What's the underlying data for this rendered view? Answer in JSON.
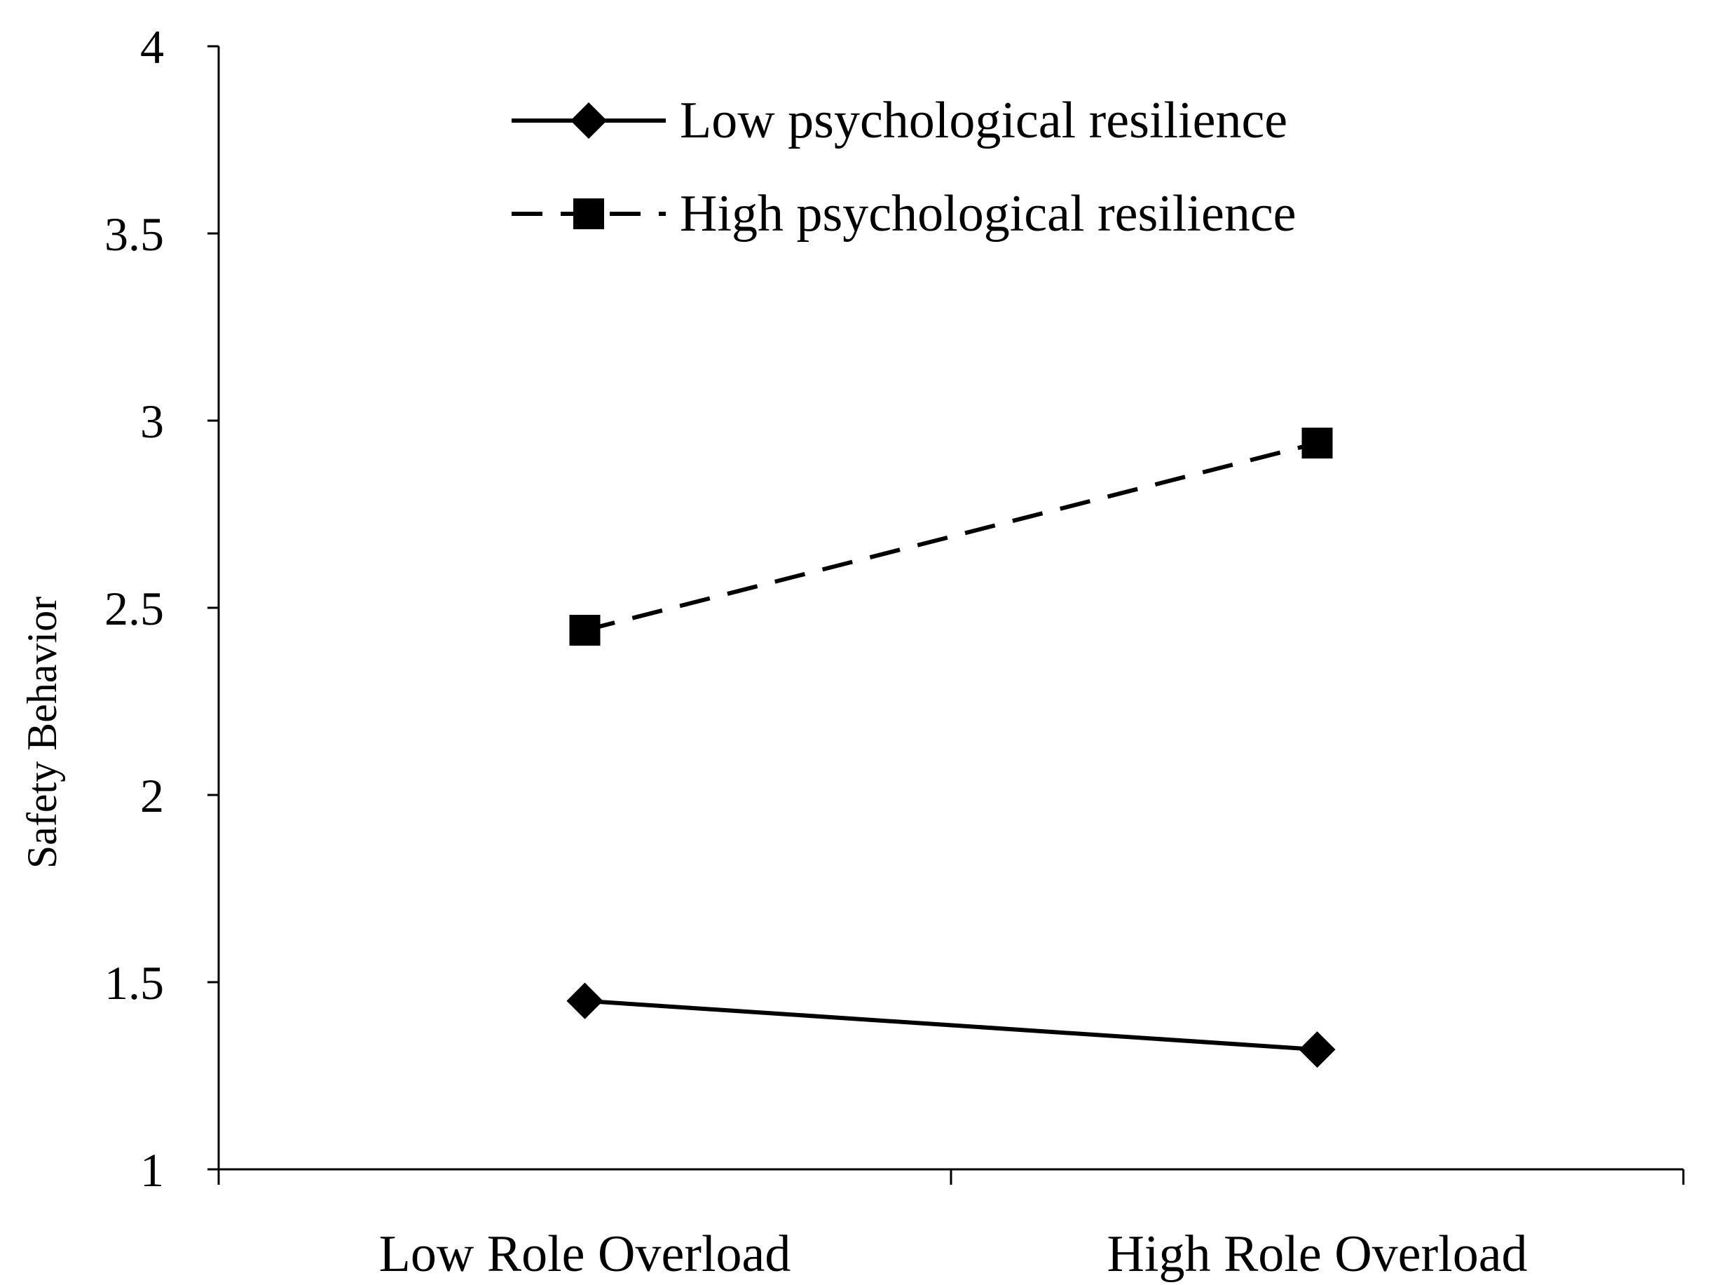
{
  "chart_data": {
    "type": "line",
    "title": "",
    "xlabel": "",
    "ylabel": "Safety Behavior",
    "categories": [
      "Low Role Overload",
      "High Role Overload"
    ],
    "ylim": [
      1,
      4
    ],
    "yticks": [
      "1",
      "1.5",
      "2",
      "2.5",
      "3",
      "3.5",
      "4"
    ],
    "grid": false,
    "legend_position": "top-center",
    "series": [
      {
        "name": "Low psychological resilience",
        "values": [
          1.45,
          1.32
        ],
        "marker": "diamond",
        "line_style": "solid",
        "color": "#000000"
      },
      {
        "name": "High psychological resilience",
        "values": [
          2.44,
          2.94
        ],
        "marker": "square",
        "line_style": "dashed",
        "color": "#000000"
      }
    ]
  }
}
